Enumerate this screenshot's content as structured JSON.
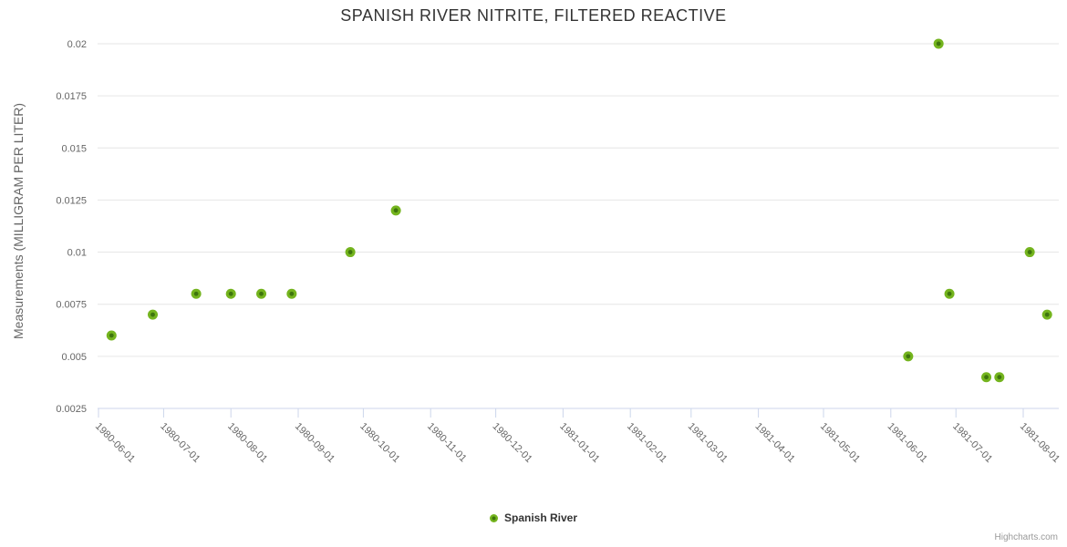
{
  "chart_data": {
    "type": "scatter",
    "title": "SPANISH RIVER NITRITE, FILTERED REACTIVE",
    "xlabel": "",
    "ylabel": "Measurements (MILLIGRAM PER LITER)",
    "legend": {
      "label": "Spanish River",
      "position": "bottom-center"
    },
    "credits": "Highcharts.com",
    "grid": "horizontal",
    "ylim": [
      0.0025,
      0.02
    ],
    "xlim": [
      "1980-06-01",
      "1981-08-01"
    ],
    "yticks": [
      {
        "label": "0.0025",
        "value": 0.0025
      },
      {
        "label": "0.005",
        "value": 0.005
      },
      {
        "label": "0.0075",
        "value": 0.0075
      },
      {
        "label": "0.01",
        "value": 0.01
      },
      {
        "label": "0.0125",
        "value": 0.0125
      },
      {
        "label": "0.015",
        "value": 0.015
      },
      {
        "label": "0.0175",
        "value": 0.0175
      },
      {
        "label": "0.02",
        "value": 0.02
      }
    ],
    "xticks": [
      "1980-06-01",
      "1980-07-01",
      "1980-08-01",
      "1980-09-01",
      "1980-10-01",
      "1980-11-01",
      "1980-12-01",
      "1981-01-01",
      "1981-02-01",
      "1981-03-01",
      "1981-04-01",
      "1981-05-01",
      "1981-06-01",
      "1981-07-01",
      "1981-08-01"
    ],
    "series": [
      {
        "name": "Spanish River",
        "points": [
          {
            "x": "1980-06-07",
            "y": 0.006
          },
          {
            "x": "1980-06-26",
            "y": 0.007
          },
          {
            "x": "1980-07-16",
            "y": 0.008
          },
          {
            "x": "1980-08-01",
            "y": 0.008
          },
          {
            "x": "1980-08-15",
            "y": 0.008
          },
          {
            "x": "1980-08-29",
            "y": 0.008
          },
          {
            "x": "1980-09-25",
            "y": 0.01
          },
          {
            "x": "1980-10-16",
            "y": 0.012
          },
          {
            "x": "1981-06-09",
            "y": 0.005
          },
          {
            "x": "1981-06-23",
            "y": 0.02
          },
          {
            "x": "1981-06-28",
            "y": 0.008
          },
          {
            "x": "1981-07-15",
            "y": 0.004
          },
          {
            "x": "1981-07-21",
            "y": 0.004
          },
          {
            "x": "1981-08-04",
            "y": 0.01
          },
          {
            "x": "1981-08-12",
            "y": 0.007
          }
        ]
      }
    ],
    "colors": {
      "marker_fill": "#74b41e",
      "marker_center": "#3e750d",
      "grid_line": "#e6e6e6",
      "axis_line": "#ccd6eb",
      "title_text": "#333333",
      "label_text": "#666666",
      "credits_text": "#999999"
    }
  }
}
